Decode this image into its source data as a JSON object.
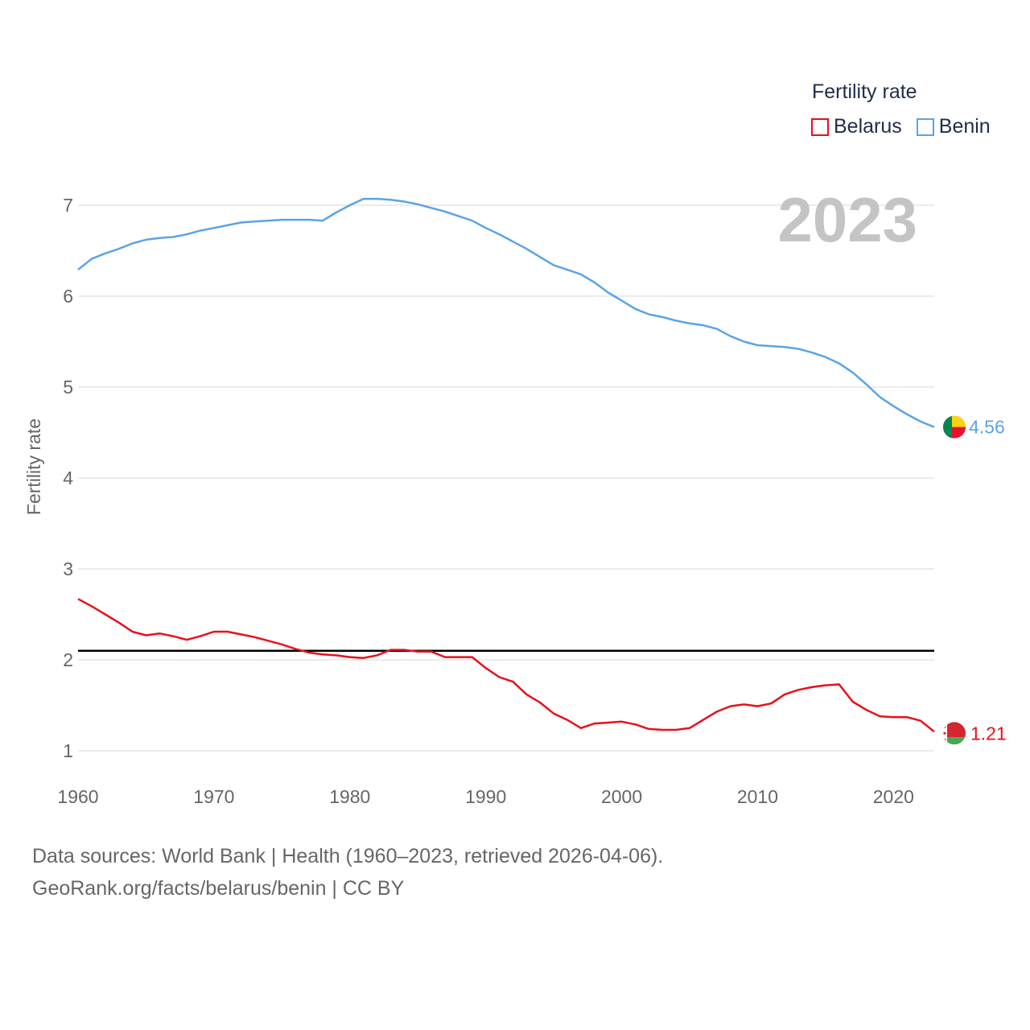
{
  "legend": {
    "title": "Fertility rate",
    "items": [
      {
        "label": "Belarus",
        "color": "#e8101a"
      },
      {
        "label": "Benin",
        "color": "#5ba3e6"
      }
    ]
  },
  "footer": {
    "line1": "Data sources: World Bank | Health (1960–2023, retrieved 2026-04-06).",
    "line2": "GeoRank.org/facts/belarus/benin | CC BY"
  },
  "chart_data": {
    "type": "line",
    "title": "Fertility rate",
    "current_year_label": "2023",
    "xlabel": "",
    "ylabel": "Fertility rate",
    "xlim": [
      1960,
      2023
    ],
    "ylim": [
      1,
      7
    ],
    "x_ticks": [
      1960,
      1970,
      1980,
      1990,
      2000,
      2010,
      2020
    ],
    "y_ticks": [
      1,
      2,
      3,
      4,
      5,
      6,
      7
    ],
    "grid": true,
    "legend_position": "top-right",
    "reference_line": {
      "y": 2.1,
      "color": "#000000"
    },
    "x": [
      1960,
      1961,
      1962,
      1963,
      1964,
      1965,
      1966,
      1967,
      1968,
      1969,
      1970,
      1971,
      1972,
      1973,
      1974,
      1975,
      1976,
      1977,
      1978,
      1979,
      1980,
      1981,
      1982,
      1983,
      1984,
      1985,
      1986,
      1987,
      1988,
      1989,
      1990,
      1991,
      1992,
      1993,
      1994,
      1995,
      1996,
      1997,
      1998,
      1999,
      2000,
      2001,
      2002,
      2003,
      2004,
      2005,
      2006,
      2007,
      2008,
      2009,
      2010,
      2011,
      2012,
      2013,
      2014,
      2015,
      2016,
      2017,
      2018,
      2019,
      2020,
      2021,
      2022,
      2023
    ],
    "series": [
      {
        "name": "Belarus",
        "color": "#e8101a",
        "end_label": "1.21",
        "values": [
          2.67,
          2.59,
          2.5,
          2.41,
          2.31,
          2.27,
          2.29,
          2.26,
          2.22,
          2.26,
          2.31,
          2.31,
          2.28,
          2.25,
          2.21,
          2.17,
          2.12,
          2.08,
          2.06,
          2.05,
          2.03,
          2.02,
          2.05,
          2.11,
          2.11,
          2.09,
          2.09,
          2.03,
          2.03,
          2.03,
          1.91,
          1.81,
          1.76,
          1.62,
          1.53,
          1.41,
          1.34,
          1.25,
          1.3,
          1.31,
          1.32,
          1.29,
          1.24,
          1.23,
          1.23,
          1.25,
          1.34,
          1.43,
          1.49,
          1.51,
          1.49,
          1.52,
          1.62,
          1.67,
          1.7,
          1.72,
          1.73,
          1.54,
          1.45,
          1.38,
          1.37,
          1.37,
          1.33,
          1.21
        ]
      },
      {
        "name": "Benin",
        "color": "#5ba3e6",
        "end_label": "4.56",
        "values": [
          6.29,
          6.41,
          6.47,
          6.52,
          6.58,
          6.62,
          6.64,
          6.65,
          6.68,
          6.72,
          6.75,
          6.78,
          6.81,
          6.82,
          6.83,
          6.84,
          6.84,
          6.84,
          6.83,
          6.92,
          7.0,
          7.07,
          7.07,
          7.06,
          7.04,
          7.01,
          6.97,
          6.93,
          6.88,
          6.83,
          6.75,
          6.68,
          6.6,
          6.52,
          6.43,
          6.34,
          6.29,
          6.24,
          6.15,
          6.04,
          5.95,
          5.86,
          5.8,
          5.77,
          5.73,
          5.7,
          5.68,
          5.64,
          5.56,
          5.5,
          5.46,
          5.45,
          5.44,
          5.42,
          5.38,
          5.33,
          5.26,
          5.16,
          5.03,
          4.89,
          4.79,
          4.7,
          4.62,
          4.56
        ]
      }
    ]
  }
}
